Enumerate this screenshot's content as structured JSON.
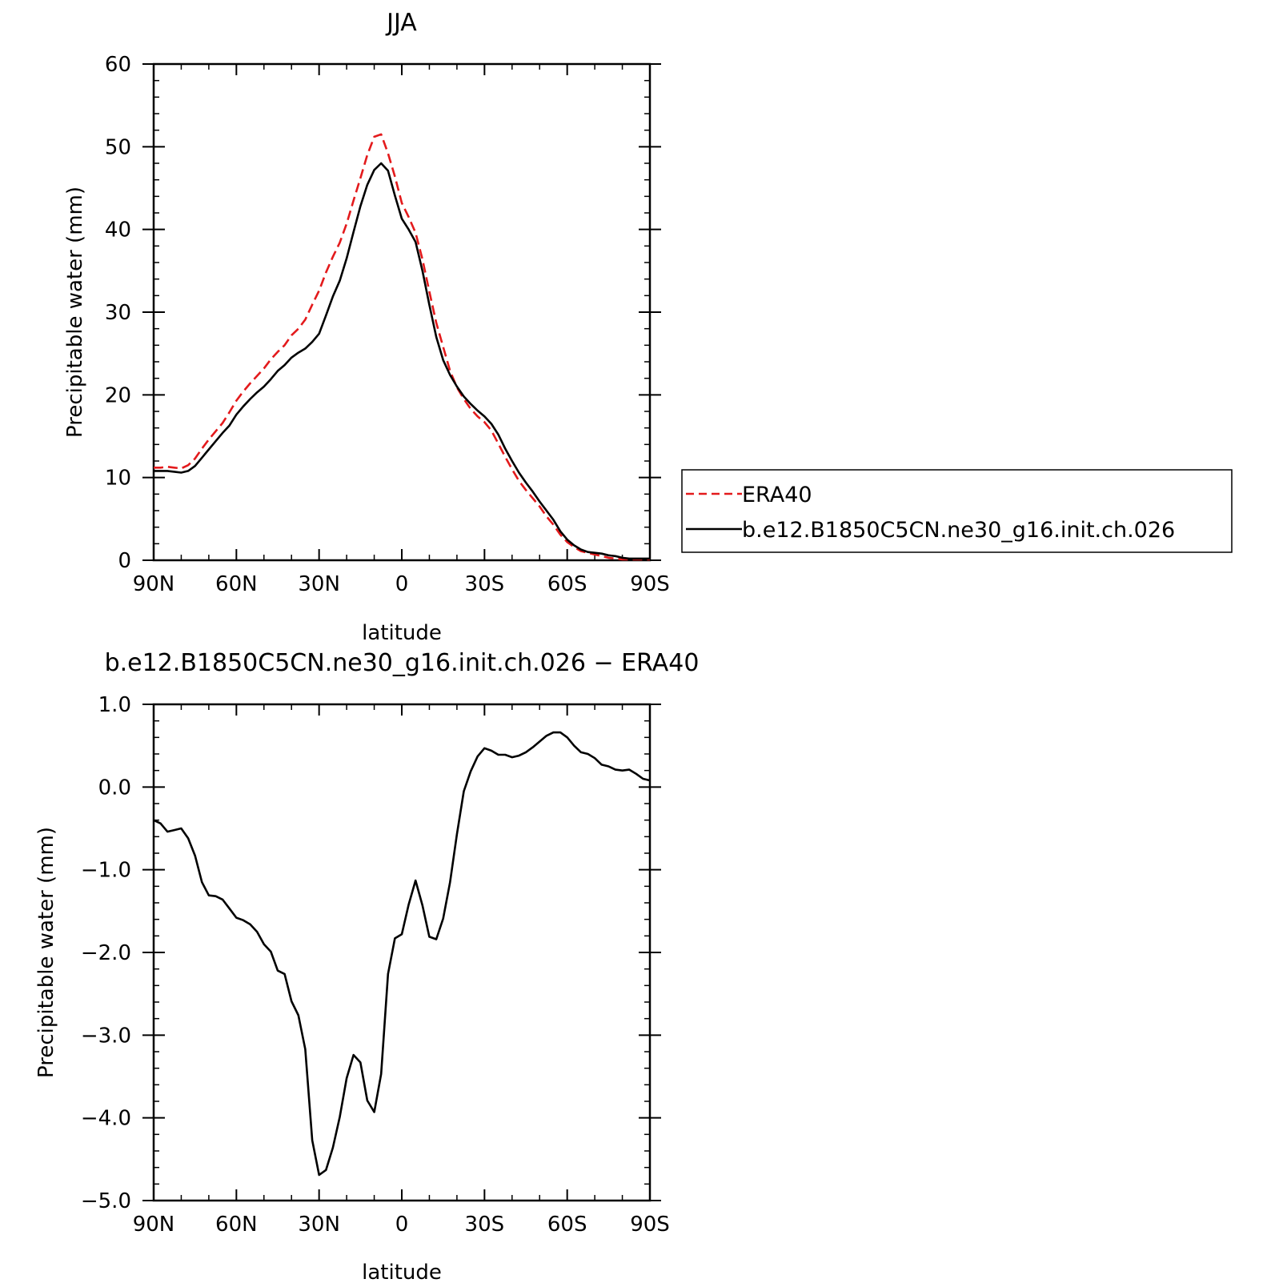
{
  "chart_data": [
    {
      "type": "line",
      "title": "JJA",
      "xlabel": "latitude",
      "ylabel": "Precipitable water (mm)",
      "xlim": [
        90,
        -90
      ],
      "ylim": [
        0,
        60
      ],
      "x_ticks": [
        90,
        60,
        30,
        0,
        -30,
        -60,
        -90
      ],
      "x_tick_labels": [
        "90N",
        "60N",
        "30N",
        "0",
        "30S",
        "60S",
        "90S"
      ],
      "y_ticks": [
        0,
        10,
        20,
        30,
        40,
        50,
        60
      ],
      "y_tick_labels": [
        "0",
        "10",
        "20",
        "30",
        "40",
        "50",
        "60"
      ],
      "legend_placement": "right, outside plot",
      "series": [
        {
          "name": "ERA40",
          "color": "#e31a1c",
          "dash": "dashed",
          "x": [
            90,
            87.5,
            85,
            82.5,
            80,
            77.5,
            75,
            72.5,
            70,
            67.5,
            65,
            62.5,
            60,
            57.5,
            55,
            52.5,
            50,
            47.5,
            45,
            42.5,
            40,
            37.5,
            35,
            32.5,
            30,
            27.5,
            25,
            22.5,
            20,
            17.5,
            15,
            12.5,
            10,
            7.5,
            5,
            2.5,
            0,
            -2.5,
            -5,
            -7.5,
            -10,
            -12.5,
            -15,
            -17.5,
            -20,
            -22.5,
            -25,
            -27.5,
            -30,
            -32.5,
            -35,
            -37.5,
            -40,
            -42.5,
            -45,
            -47.5,
            -50,
            -52.5,
            -55,
            -57.5,
            -60,
            -62.5,
            -65,
            -67.5,
            -70,
            -72.5,
            -75,
            -77.5,
            -80,
            -82.5,
            -85,
            -87.5,
            -90
          ],
          "values": [
            11.2,
            11.2,
            11.3,
            11.2,
            11.1,
            11.5,
            12.3,
            13.5,
            14.6,
            15.6,
            16.6,
            17.9,
            19.3,
            20.4,
            21.4,
            22.3,
            23.2,
            24.3,
            25.2,
            26.0,
            27.2,
            28.0,
            29.1,
            30.9,
            32.6,
            34.8,
            36.7,
            38.4,
            40.7,
            43.5,
            46.2,
            49.0,
            51.2,
            51.5,
            49.2,
            46.4,
            43.2,
            41.5,
            39.6,
            36.4,
            32.5,
            28.7,
            25.8,
            22.9,
            20.9,
            19.5,
            18.3,
            17.4,
            16.7,
            15.7,
            14.1,
            12.5,
            11.0,
            9.6,
            8.5,
            7.5,
            6.5,
            5.3,
            4.3,
            3.1,
            2.2,
            1.6,
            1.1,
            0.9,
            0.7,
            0.5,
            0.3,
            0.2,
            0.1,
            0.1,
            0.1,
            0.1,
            0.1
          ]
        },
        {
          "name": "b.e12.B1850C5CN.ne30_g16.init.ch.026",
          "color": "#000000",
          "dash": "solid",
          "x": [
            90,
            87.5,
            85,
            82.5,
            80,
            77.5,
            75,
            72.5,
            70,
            67.5,
            65,
            62.5,
            60,
            57.5,
            55,
            52.5,
            50,
            47.5,
            45,
            42.5,
            40,
            37.5,
            35,
            32.5,
            30,
            27.5,
            25,
            22.5,
            20,
            17.5,
            15,
            12.5,
            10,
            7.5,
            5,
            2.5,
            0,
            -2.5,
            -5,
            -7.5,
            -10,
            -12.5,
            -15,
            -17.5,
            -20,
            -22.5,
            -25,
            -27.5,
            -30,
            -32.5,
            -35,
            -37.5,
            -40,
            -42.5,
            -45,
            -47.5,
            -50,
            -52.5,
            -55,
            -57.5,
            -60,
            -62.5,
            -65,
            -67.5,
            -70,
            -72.5,
            -75,
            -77.5,
            -80,
            -82.5,
            -85,
            -87.5,
            -90
          ],
          "values": [
            10.8,
            10.8,
            10.8,
            10.7,
            10.6,
            10.8,
            11.4,
            12.4,
            13.4,
            14.4,
            15.4,
            16.3,
            17.6,
            18.6,
            19.5,
            20.3,
            21.0,
            21.9,
            22.9,
            23.6,
            24.5,
            25.1,
            25.6,
            26.4,
            27.4,
            29.6,
            31.9,
            33.8,
            36.5,
            39.7,
            42.8,
            45.4,
            47.2,
            48.0,
            47.1,
            44.1,
            41.3,
            40.0,
            38.5,
            35.0,
            30.9,
            27.0,
            24.2,
            22.4,
            21.0,
            19.8,
            18.9,
            18.1,
            17.4,
            16.5,
            15.2,
            13.5,
            12.0,
            10.6,
            9.4,
            8.3,
            7.1,
            6.0,
            4.9,
            3.5,
            2.5,
            1.8,
            1.3,
            1.0,
            0.9,
            0.8,
            0.6,
            0.5,
            0.3,
            0.2,
            0.2,
            0.2,
            0.2
          ]
        }
      ]
    },
    {
      "type": "line",
      "title": "b.e12.B1850C5CN.ne30_g16.init.ch.026 − ERA40",
      "xlabel": "latitude",
      "ylabel": "Precipitable water (mm)",
      "xlim": [
        90,
        -90
      ],
      "ylim": [
        -5.0,
        1.0
      ],
      "x_ticks": [
        90,
        60,
        30,
        0,
        -30,
        -60,
        -90
      ],
      "x_tick_labels": [
        "90N",
        "60N",
        "30N",
        "0",
        "30S",
        "60S",
        "90S"
      ],
      "y_ticks": [
        1.0,
        0.0,
        -1.0,
        -2.0,
        -3.0,
        -4.0,
        -5.0
      ],
      "y_tick_labels": [
        "1.0",
        "0.0",
        "−1.0",
        "−2.0",
        "−3.0",
        "−4.0",
        "−5.0"
      ],
      "series": [
        {
          "color": "#000000",
          "dash": "solid",
          "x": [
            90,
            87.5,
            85,
            82.5,
            80,
            77.5,
            75,
            72.5,
            70,
            67.5,
            65,
            62.5,
            60,
            57.5,
            55,
            52.5,
            50,
            47.5,
            45,
            42.5,
            40,
            37.5,
            35,
            32.5,
            30,
            27.5,
            25,
            22.5,
            20,
            17.5,
            15,
            12.5,
            10,
            7.5,
            5,
            2.5,
            0,
            -2.5,
            -5,
            -7.5,
            -10,
            -12.5,
            -15,
            -17.5,
            -20,
            -22.5,
            -25,
            -27.5,
            -30,
            -32.5,
            -35,
            -37.5,
            -40,
            -42.5,
            -45,
            -47.5,
            -50,
            -52.5,
            -55,
            -57.5,
            -60,
            -62.5,
            -65,
            -67.5,
            -70,
            -72.5,
            -75,
            -77.5,
            -80,
            -82.5,
            -85,
            -87.5,
            -90
          ],
          "values": [
            -0.4,
            -0.44,
            -0.54,
            -0.52,
            -0.5,
            -0.62,
            -0.83,
            -1.15,
            -1.31,
            -1.32,
            -1.36,
            -1.47,
            -1.58,
            -1.61,
            -1.66,
            -1.75,
            -1.9,
            -1.99,
            -2.22,
            -2.26,
            -2.59,
            -2.76,
            -3.17,
            -4.27,
            -4.69,
            -4.63,
            -4.36,
            -3.99,
            -3.52,
            -3.24,
            -3.33,
            -3.79,
            -3.93,
            -3.47,
            -2.26,
            -1.83,
            -1.78,
            -1.42,
            -1.13,
            -1.43,
            -1.81,
            -1.84,
            -1.59,
            -1.15,
            -0.57,
            -0.05,
            0.19,
            0.37,
            0.47,
            0.44,
            0.39,
            0.39,
            0.36,
            0.38,
            0.42,
            0.48,
            0.55,
            0.62,
            0.66,
            0.66,
            0.6,
            0.5,
            0.42,
            0.4,
            0.35,
            0.27,
            0.25,
            0.21,
            0.2,
            0.21,
            0.16,
            0.1,
            0.08
          ]
        }
      ]
    }
  ]
}
